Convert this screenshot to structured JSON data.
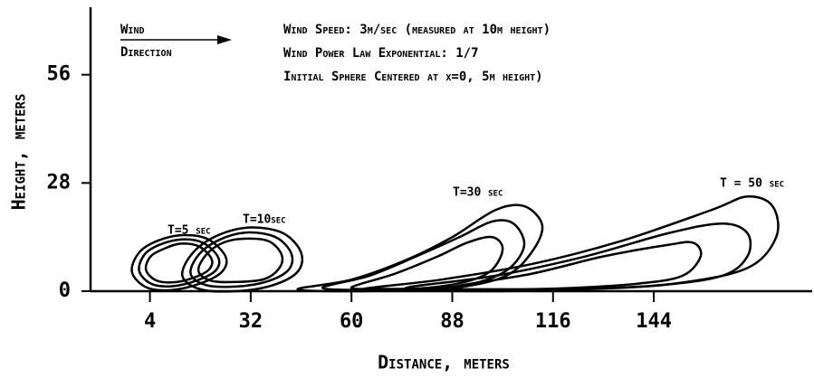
{
  "chart_data": {
    "type": "contour",
    "xlabel": "Distance, meters",
    "ylabel": "Height, meters",
    "xlim": [
      -12.5,
      188
    ],
    "ylim": [
      0,
      73
    ],
    "xticks": [
      4,
      32,
      60,
      88,
      116,
      144
    ],
    "yticks": [
      0,
      28,
      56
    ],
    "color": "#000000",
    "legend": {
      "title": "Wind",
      "subtitle": "Direction"
    },
    "annotations": [
      "Wind Speed:  3m/sec (measured at 10m height)",
      "Wind Power Law Exponential:  1/7",
      "Initial Sphere Centered at x=0, 5m height)"
    ],
    "series": [
      {
        "label": "T=5 sec",
        "contours": [
          {
            "x": [
              -1,
              1,
              6,
              13,
              20,
              25,
              24,
              18,
              10,
              3
            ],
            "y": [
              5,
              10,
              13,
              14.5,
              13.5,
              9,
              5,
              2,
              0.3,
              1
            ]
          },
          {
            "x": [
              1,
              2.6,
              6.9,
              12.9,
              18.8,
              23,
              22.2,
              17.1,
              10.3,
              4.4
            ],
            "y": [
              5.3,
              9.6,
              12.1,
              13.4,
              12.5,
              8.7,
              5.3,
              2.8,
              1.3,
              1.9
            ]
          },
          {
            "x": [
              2.9,
              4.3,
              8.5,
              12.7,
              17.6,
              21.1,
              20.4,
              16.2,
              10.6,
              5.7
            ],
            "y": [
              5.6,
              9.1,
              11.2,
              12.3,
              11.6,
              8.4,
              5.6,
              3.5,
              2.3,
              2.8
            ]
          }
        ]
      },
      {
        "label": "T=10sec",
        "contours": [
          {
            "x": [
              13,
              16,
              23,
              32,
              41,
              46,
              45,
              38,
              28,
              18
            ],
            "y": [
              4,
              10,
              14.5,
              16.5,
              15,
              10,
              5,
              1.5,
              0,
              0.5
            ]
          },
          {
            "x": [
              15.3,
              17.8,
              23.8,
              31.4,
              39.1,
              43.3,
              42.5,
              36.5,
              28,
              19.5
            ],
            "y": [
              4.6,
              9.7,
              13.5,
              15.2,
              13.9,
              9.7,
              5.5,
              2.5,
              1.2,
              1.6
            ]
          },
          {
            "x": [
              17.5,
              19.6,
              24.5,
              30.8,
              37.1,
              40.6,
              39.9,
              35.7,
              28,
              21
            ],
            "y": [
              5.2,
              9.4,
              12.6,
              13.6,
              12.9,
              9.4,
              5.9,
              3.1,
              2.4,
              2.7
            ]
          }
        ]
      },
      {
        "label": "T=30 sec",
        "contours": [
          {
            "x": [
              45,
              60,
              75,
              88,
              100,
              108,
              113,
              110,
              103,
              90,
              75,
              60
            ],
            "y": [
              0.5,
              3,
              8,
              14,
              21,
              22,
              17,
              10,
              4,
              1,
              0.3,
              0
            ]
          },
          {
            "x": [
              52,
              65,
              78,
              90,
              99,
              105,
              108,
              104,
              96,
              84,
              70
            ],
            "y": [
              0.8,
              4,
              9,
              14,
              18,
              17.5,
              12,
              6,
              2.5,
              0.7,
              0.3
            ]
          },
          {
            "x": [
              60,
              72,
              84,
              92,
              99,
              102,
              99,
              92,
              80,
              68
            ],
            "y": [
              1,
              4.5,
              9,
              12.5,
              14,
              11,
              5.5,
              2.5,
              0.8,
              0.6
            ]
          }
        ]
      },
      {
        "label": "T = 50 sec",
        "contours": [
          {
            "x": [
              63,
              85,
              110,
              135,
              160,
              170,
              177,
              178,
              170,
              150,
              125,
              100,
              80
            ],
            "y": [
              0.5,
              3,
              7,
              13,
              21,
              24.5,
              22,
              14,
              6,
              2,
              0.5,
              0,
              0.2
            ]
          },
          {
            "x": [
              75,
              100,
              125,
              148,
              163,
              170,
              170,
              163,
              145,
              120,
              95
            ],
            "y": [
              0.8,
              4,
              9,
              15,
              17.5,
              15,
              9,
              4,
              1.5,
              0.5,
              0.3
            ]
          },
          {
            "x": [
              88,
              110,
              130,
              148,
              155,
              157,
              152,
              140,
              120,
              100
            ],
            "y": [
              1,
              4.5,
              9,
              12,
              12.5,
              9,
              4,
              2,
              0.8,
              0.5
            ]
          }
        ]
      }
    ]
  }
}
